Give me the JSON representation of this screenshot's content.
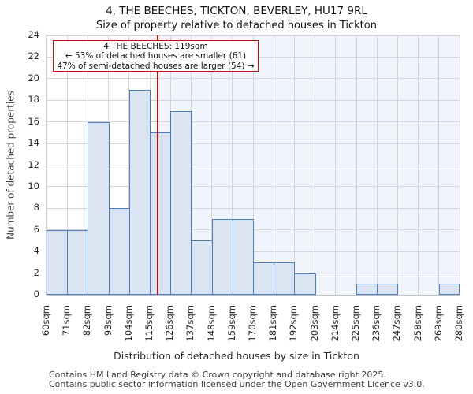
{
  "header": {
    "title": "4, THE BEECHES, TICKTON, BEVERLEY, HU17 9RL",
    "subtitle": "Size of property relative to detached houses in Tickton"
  },
  "annotation": {
    "line1": "4 THE BEECHES: 119sqm",
    "line2": "← 53% of detached houses are smaller (61)",
    "line3": "47% of semi-detached houses are larger (54) →"
  },
  "chart_data": {
    "type": "bar",
    "title": "4, THE BEECHES, TICKTON, BEVERLEY, HU17 9RL",
    "subtitle": "Size of property relative to detached houses in Tickton",
    "xlabel": "Distribution of detached houses by size in Tickton",
    "ylabel": "Number of detached properties",
    "bin_edges_sqm": [
      60,
      71,
      82,
      93,
      104,
      115,
      126,
      137,
      148,
      159,
      170,
      181,
      192,
      203,
      214,
      225,
      236,
      247,
      258,
      269,
      280
    ],
    "bin_edge_labels": [
      "60sqm",
      "71sqm",
      "82sqm",
      "93sqm",
      "104sqm",
      "115sqm",
      "126sqm",
      "137sqm",
      "148sqm",
      "159sqm",
      "170sqm",
      "181sqm",
      "192sqm",
      "203sqm",
      "214sqm",
      "225sqm",
      "236sqm",
      "247sqm",
      "258sqm",
      "269sqm",
      "280sqm"
    ],
    "values": [
      6,
      6,
      16,
      8,
      19,
      15,
      17,
      5,
      7,
      7,
      3,
      3,
      2,
      0,
      0,
      1,
      1,
      0,
      0,
      1
    ],
    "ylim": [
      0,
      24
    ],
    "ytick_step": 2,
    "xlim_sqm": [
      60,
      280
    ],
    "marker_value_sqm": 119,
    "grid": true,
    "legend": "none",
    "colors": {
      "bar_fill": "#dbe4f3",
      "bar_edge": "#4d7fc0",
      "marker_line": "#bb1111",
      "shaded_region_right_of_marker": "#f0f4fb",
      "gridline": "#d4d4da",
      "annotation_border": "#bb1111"
    }
  },
  "footer": {
    "line1": "Contains HM Land Registry data © Crown copyright and database right 2025.",
    "line2": "Contains public sector information licensed under the Open Government Licence v3.0."
  }
}
